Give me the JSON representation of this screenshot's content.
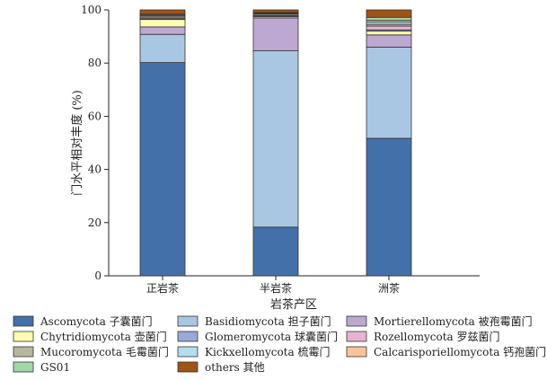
{
  "chart_data": {
    "type": "bar",
    "stacked": true,
    "categories": [
      "正岩茶",
      "半岩茶",
      "洲茶"
    ],
    "xlabel": "岩茶产区",
    "ylabel": "门水平相对丰度 (%)",
    "ylim": [
      0,
      100
    ],
    "yticks": [
      0,
      20,
      40,
      60,
      80,
      100
    ],
    "grid": false,
    "legend_position": "bottom",
    "series": [
      {
        "name": "Ascomycota 子囊菌门",
        "color": "#4470a9",
        "values": [
          80.2,
          18.3,
          51.7
        ]
      },
      {
        "name": "Basidiomycota 担子菌门",
        "color": "#a9c7e2",
        "values": [
          10.6,
          66.3,
          34.3
        ]
      },
      {
        "name": "Mortierellomycota 被孢霉菌门",
        "color": "#bca8d1",
        "values": [
          2.8,
          12.4,
          4.6
        ]
      },
      {
        "name": "Chytridiomycota 壶菌门",
        "color": "#fdfcb2",
        "values": [
          2.8,
          0.5,
          1.4
        ]
      },
      {
        "name": "Glomeromycota 球囊菌门",
        "color": "#9aa9d8",
        "values": [
          0.2,
          0.1,
          0.5
        ]
      },
      {
        "name": "Rozellomycota 罗兹菌门",
        "color": "#e8b4d0",
        "values": [
          0.4,
          0.3,
          1.4
        ]
      },
      {
        "name": "Mucoromycota 毛霉菌门",
        "color": "#b5b79f",
        "values": [
          0.6,
          0.5,
          0.7
        ]
      },
      {
        "name": "Kickxellomycota 梳霉门",
        "color": "#b3ddef",
        "values": [
          0.2,
          0.3,
          0.9
        ]
      },
      {
        "name": "Calcarisporiellomycota 钙孢菌门",
        "color": "#f9c49a",
        "values": [
          0.4,
          0.2,
          0.6
        ]
      },
      {
        "name": "GS01",
        "color": "#a4d7a7",
        "values": [
          0.2,
          0.1,
          1.1
        ]
      },
      {
        "name": "others 其他",
        "color": "#9e5416",
        "values": [
          1.6,
          1.0,
          2.8
        ]
      }
    ]
  }
}
